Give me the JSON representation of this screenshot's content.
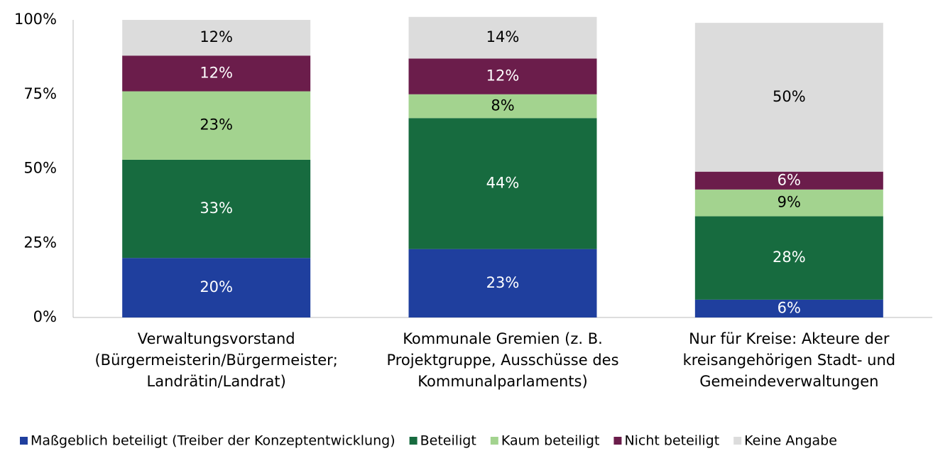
{
  "chart_data": {
    "type": "stacked_bar",
    "categories": [
      "Verwaltungsvorstand\n(Bürgermeisterin/Bürgermeister;\nLandrätin/Landrat)",
      "Kommunale Gremien (z. B.\nProjektgruppe, Ausschüsse des\nKommunalparlaments)",
      "Nur für Kreise: Akteure der\nkreisangehörigen Stadt- und\nGemeindeverwaltungen"
    ],
    "series": [
      {
        "name": "Maßgeblich beteiligt (Treiber der Konzeptentwicklung)",
        "color": "#1f3f9e",
        "values": [
          20,
          23,
          6
        ],
        "value_labels": [
          "20%",
          "23%",
          "6%"
        ]
      },
      {
        "name": "Beteiligt",
        "color": "#176b3f",
        "values": [
          33,
          44,
          28
        ],
        "value_labels": [
          "33%",
          "44%",
          "28%"
        ]
      },
      {
        "name": "Kaum beteiligt",
        "color": "#a3d38f",
        "values": [
          23,
          8,
          9
        ],
        "value_labels": [
          "23%",
          "8%",
          "9%"
        ]
      },
      {
        "name": "Nicht beteiligt",
        "color": "#6b1d4b",
        "values": [
          12,
          12,
          6
        ],
        "value_labels": [
          "12%",
          "12%",
          "6%"
        ]
      },
      {
        "name": "Keine Angabe",
        "color": "#dcdcdc",
        "values": [
          12,
          14,
          50
        ],
        "value_labels": [
          "12%",
          "14%",
          "50%"
        ]
      }
    ],
    "ylim": [
      0,
      100
    ],
    "yticks": [
      {
        "value": 0,
        "label": "0%"
      },
      {
        "value": 25,
        "label": "25%"
      },
      {
        "value": 50,
        "label": "50%"
      },
      {
        "value": 75,
        "label": "75%"
      },
      {
        "value": 100,
        "label": "100%"
      }
    ],
    "legend": "bottom"
  }
}
